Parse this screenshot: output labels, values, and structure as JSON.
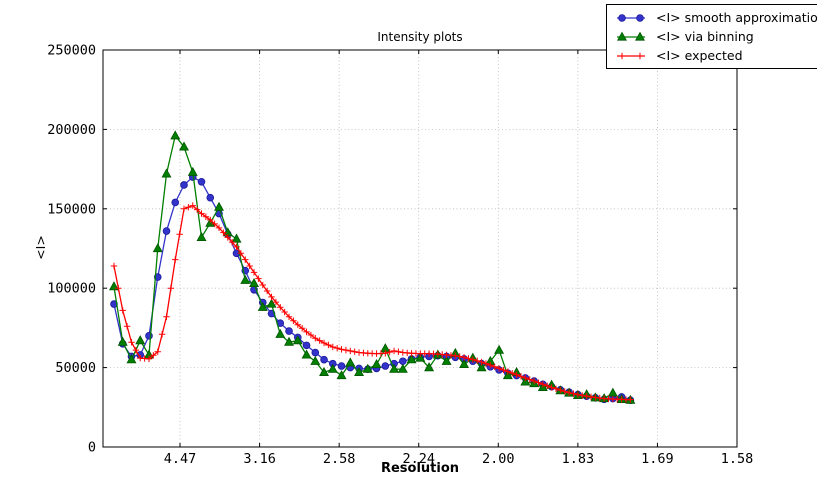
{
  "chart_data": {
    "type": "line",
    "title": "Intensity plots",
    "xlabel": "Resolution",
    "ylabel": "<I>",
    "grid": true,
    "legend_position": "top-right",
    "x_axis": {
      "unit": "1/d^2",
      "min": 0.0016,
      "max": 0.4,
      "ticks": [
        {
          "pos": 0.05,
          "label": "4.47"
        },
        {
          "pos": 0.1,
          "label": "3.16"
        },
        {
          "pos": 0.15,
          "label": "2.58"
        },
        {
          "pos": 0.2,
          "label": "2.24"
        },
        {
          "pos": 0.25,
          "label": "2.00"
        },
        {
          "pos": 0.3,
          "label": "1.83"
        },
        {
          "pos": 0.35,
          "label": "1.69"
        },
        {
          "pos": 0.4,
          "label": "1.58"
        }
      ]
    },
    "y_axis": {
      "min": 0,
      "max": 250000,
      "ticks": [
        {
          "pos": 0,
          "label": "0"
        },
        {
          "pos": 50000,
          "label": "50000"
        },
        {
          "pos": 100000,
          "label": "100000"
        },
        {
          "pos": 150000,
          "label": "150000"
        },
        {
          "pos": 200000,
          "label": "200000"
        },
        {
          "pos": 250000,
          "label": "250000"
        }
      ]
    },
    "series": [
      {
        "id": "smooth-approximation",
        "name": "<I> smooth approximation",
        "color": "#3333cc",
        "edge_color": "#1a1a99",
        "marker": "circle",
        "marker_midpoints": false,
        "x": [
          0.0085,
          0.014,
          0.0195,
          0.025,
          0.0305,
          0.036,
          0.0415,
          0.047,
          0.0525,
          0.058,
          0.0635,
          0.069,
          0.0745,
          0.08,
          0.0855,
          0.091,
          0.0965,
          0.102,
          0.1075,
          0.113,
          0.1185,
          0.124,
          0.1295,
          0.135,
          0.1405,
          0.146,
          0.1515,
          0.157,
          0.1625,
          0.168,
          0.1735,
          0.179,
          0.1845,
          0.19,
          0.1955,
          0.201,
          0.2065,
          0.212,
          0.2175,
          0.223,
          0.2285,
          0.234,
          0.2395,
          0.245,
          0.2505,
          0.256,
          0.2615,
          0.267,
          0.2725,
          0.278,
          0.2835,
          0.289,
          0.2945,
          0.3,
          0.3055,
          0.311,
          0.3165,
          0.322,
          0.3275,
          0.333
        ],
        "y": [
          90000,
          65000,
          57000,
          58000,
          70000,
          107000,
          136000,
          154000,
          165000,
          170000,
          167000,
          157000,
          147000,
          134000,
          122000,
          111000,
          99000,
          91000,
          84000,
          78000,
          73000,
          69000,
          64000,
          59500,
          55000,
          52500,
          51000,
          50000,
          49500,
          49000,
          49500,
          51000,
          52500,
          54000,
          55500,
          56500,
          57000,
          57500,
          57000,
          56500,
          55500,
          54000,
          52500,
          50500,
          48500,
          46500,
          45000,
          43500,
          41500,
          39500,
          38000,
          36000,
          34500,
          33000,
          32000,
          31000,
          30000,
          30500,
          31500,
          29500
        ]
      },
      {
        "id": "via-binning",
        "name": "<I> via binning",
        "color": "#007f00",
        "edge_color": "#005500",
        "marker": "triangle",
        "marker_midpoints": false,
        "x": [
          0.0085,
          0.014,
          0.0195,
          0.025,
          0.0305,
          0.036,
          0.0415,
          0.047,
          0.0525,
          0.058,
          0.0635,
          0.069,
          0.0745,
          0.08,
          0.0855,
          0.091,
          0.0965,
          0.102,
          0.1075,
          0.113,
          0.1185,
          0.124,
          0.1295,
          0.135,
          0.1405,
          0.146,
          0.1515,
          0.157,
          0.1625,
          0.168,
          0.1735,
          0.179,
          0.1845,
          0.19,
          0.1955,
          0.201,
          0.2065,
          0.212,
          0.2175,
          0.223,
          0.2285,
          0.234,
          0.2395,
          0.245,
          0.2505,
          0.256,
          0.2615,
          0.267,
          0.2725,
          0.278,
          0.2835,
          0.289,
          0.2945,
          0.3,
          0.3055,
          0.311,
          0.3165,
          0.322,
          0.3275,
          0.333
        ],
        "y": [
          101000,
          66000,
          55000,
          67000,
          58000,
          125000,
          172000,
          196000,
          189000,
          173000,
          132000,
          141000,
          151000,
          135000,
          131000,
          105000,
          103000,
          88000,
          90000,
          71000,
          66000,
          67000,
          58000,
          54000,
          47000,
          49000,
          45000,
          53000,
          47000,
          49000,
          52000,
          62000,
          49000,
          49000,
          55000,
          56000,
          50000,
          58000,
          54000,
          59000,
          52000,
          56000,
          50000,
          54000,
          61000,
          45000,
          47000,
          41000,
          40000,
          37500,
          39000,
          35500,
          34000,
          32500,
          33000,
          31000,
          30500,
          34000,
          30000,
          29500
        ]
      },
      {
        "id": "expected",
        "name": "<I> expected",
        "color": "#ff0000",
        "edge_color": "#ff0000",
        "marker": "plus",
        "marker_midpoints": true,
        "x": [
          0.0085,
          0.014,
          0.0195,
          0.025,
          0.0305,
          0.036,
          0.0415,
          0.047,
          0.0525,
          0.058,
          0.0635,
          0.069,
          0.0745,
          0.08,
          0.0855,
          0.091,
          0.0965,
          0.102,
          0.1075,
          0.113,
          0.1185,
          0.124,
          0.1295,
          0.135,
          0.1405,
          0.146,
          0.1515,
          0.157,
          0.1625,
          0.168,
          0.1735,
          0.179,
          0.1845,
          0.19,
          0.1955,
          0.201,
          0.2065,
          0.212,
          0.2175,
          0.223,
          0.2285,
          0.234,
          0.2395,
          0.245,
          0.2505,
          0.256,
          0.2615,
          0.267,
          0.2725,
          0.278,
          0.2835,
          0.289,
          0.2945,
          0.3,
          0.3055,
          0.311,
          0.3165,
          0.322,
          0.3275,
          0.333
        ],
        "y": [
          114000,
          86000,
          66000,
          56000,
          55500,
          60000,
          82000,
          118000,
          150000,
          152000,
          147000,
          143000,
          138000,
          132000,
          126000,
          118000,
          110000,
          102000,
          94500,
          88000,
          82000,
          77000,
          72500,
          68500,
          65500,
          63000,
          61500,
          60500,
          59500,
          59000,
          58800,
          59000,
          60500,
          59500,
          59000,
          58800,
          58800,
          58500,
          58000,
          57500,
          56500,
          55000,
          53500,
          51500,
          49500,
          47500,
          45500,
          43500,
          41500,
          39500,
          37500,
          35800,
          34200,
          33000,
          32000,
          31200,
          30500,
          30200,
          30000,
          29800
        ]
      }
    ]
  }
}
